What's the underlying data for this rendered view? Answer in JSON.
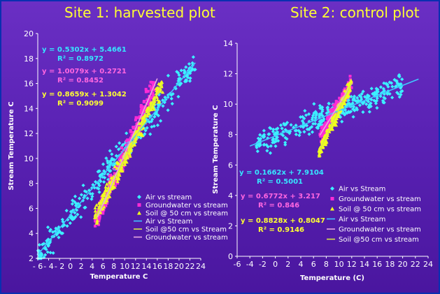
{
  "colors": {
    "air": "#3cf0ff",
    "groundwater": "#ff2bd6",
    "soil": "#f0ff1e",
    "fit_air": "#40c8ff",
    "fit_soil": "#d8e845",
    "fit_gw": "#e8a8e0",
    "eq_air": "#36e6ff",
    "eq_gw": "#ff66e0",
    "eq_soil": "#ffff33",
    "title": "#ffff33"
  },
  "chart_data": [
    {
      "type": "scatter",
      "title": "Site 1: harvested plot",
      "xlabel": "Temperature C",
      "ylabel": "Stream Temperature C",
      "xlim": [
        -6,
        24
      ],
      "ylim": [
        2,
        20
      ],
      "xticks": [
        -6,
        -4,
        -2,
        0,
        2,
        4,
        6,
        8,
        10,
        12,
        14,
        16,
        18,
        20,
        22,
        24
      ],
      "xtick_labels": [
        "- 6",
        "- 4",
        "- 2",
        "0",
        "2",
        "4",
        "6",
        "8",
        "10",
        "12",
        "14",
        "16",
        "18",
        "20",
        "22",
        "24"
      ],
      "yticks": [
        2,
        4,
        6,
        8,
        10,
        12,
        14,
        16,
        18,
        20
      ],
      "ytick_labels": [
        "2",
        "4",
        "6",
        "8",
        "10",
        "12",
        "14",
        "16",
        "18",
        "20"
      ],
      "series": [
        {
          "name": "Air vs stream",
          "kind": "points",
          "color_key": "air",
          "marker": "diamond",
          "fit": [
            0.5302,
            5.4661
          ],
          "x_range": [
            -6,
            23
          ],
          "noise": 1.3,
          "count": 320
        },
        {
          "name": "Groundwater vs stream",
          "kind": "points",
          "color_key": "groundwater",
          "marker": "square",
          "fit": [
            1.0079,
            0.2721
          ],
          "x_range": [
            4.5,
            15.5
          ],
          "noise": 1.1,
          "count": 260
        },
        {
          "name": "Soil @ 50 cm vs stream",
          "kind": "points",
          "color_key": "soil",
          "marker": "triangle",
          "fit": [
            0.8659,
            1.3042
          ],
          "x_range": [
            4.5,
            17
          ],
          "noise": 0.9,
          "count": 300
        },
        {
          "name": "Air vs Stream",
          "kind": "line",
          "color_key": "fit_air",
          "fit": [
            0.5302,
            5.4661
          ],
          "x_range": [
            -6,
            23
          ]
        },
        {
          "name": "Soil @50 cm vs Stream",
          "kind": "line",
          "color_key": "fit_soil",
          "fit": [
            0.8659,
            1.3042
          ],
          "x_range": [
            4.5,
            17
          ]
        },
        {
          "name": "Groundwater vs stream",
          "kind": "line",
          "color_key": "fit_gw",
          "fit": [
            1.0079,
            0.2721
          ],
          "x_range": [
            5,
            16
          ]
        }
      ],
      "equations": [
        {
          "color_key": "eq_air",
          "eq": "y = 0.5302x + 5.4661",
          "r2": "R² = 0.8972"
        },
        {
          "color_key": "eq_gw",
          "eq": "y = 1.0079x + 0.2721",
          "r2": "R² = 0.8452"
        },
        {
          "color_key": "eq_soil",
          "eq": "y = 0.8659x + 1.3042",
          "r2": "R² = 0.9099"
        }
      ]
    },
    {
      "type": "scatter",
      "title": "Site 2: control plot",
      "xlabel": "Temperature (C)",
      "ylabel": "Stream Temperature C",
      "xlim": [
        -6,
        24
      ],
      "ylim": [
        0,
        14
      ],
      "xticks": [
        -6,
        -4,
        -2,
        0,
        2,
        4,
        6,
        8,
        10,
        12,
        14,
        16,
        18,
        20,
        22,
        24
      ],
      "xtick_labels": [
        "-6",
        "-4",
        "-2",
        "0",
        "2",
        "4",
        "6",
        "8",
        "10",
        "12",
        "14",
        "16",
        "18",
        "20",
        "22",
        "24"
      ],
      "yticks": [
        0,
        2,
        4,
        6,
        8,
        10,
        12,
        14
      ],
      "ytick_labels": [
        "0",
        "2",
        "4",
        "6",
        "8",
        "10",
        "12",
        "14"
      ],
      "series": [
        {
          "name": "Air vs Stream",
          "kind": "points",
          "color_key": "air",
          "marker": "diamond",
          "fit": [
            0.1662,
            7.9104
          ],
          "x_range": [
            -3,
            20
          ],
          "noise": 0.9,
          "count": 320
        },
        {
          "name": "Groundwater vs stream",
          "kind": "points",
          "color_key": "groundwater",
          "marker": "square",
          "fit": [
            0.6772,
            3.217
          ],
          "x_range": [
            7,
            12
          ],
          "noise": 0.6,
          "count": 180
        },
        {
          "name": "Soil @ 50 cm vs stream",
          "kind": "points",
          "color_key": "soil",
          "marker": "triangle",
          "fit": [
            0.8828,
            0.8047
          ],
          "x_range": [
            6.8,
            12
          ],
          "noise": 0.5,
          "count": 220
        },
        {
          "name": "Air vs Stream",
          "kind": "line",
          "color_key": "fit_air",
          "fit": [
            0.1662,
            7.9104
          ],
          "x_range": [
            -4,
            22.5
          ]
        },
        {
          "name": "Groundwater vs stream",
          "kind": "line",
          "color_key": "fit_gw",
          "fit": [
            0.6772,
            3.217
          ],
          "x_range": [
            7,
            12
          ]
        },
        {
          "name": "Soil @50 cm vs stream",
          "kind": "line",
          "color_key": "fit_soil",
          "fit": [
            0.8828,
            0.8047
          ],
          "x_range": [
            7,
            12
          ]
        }
      ],
      "equations": [
        {
          "color_key": "eq_air",
          "eq": "y = 0.1662x + 7.9104",
          "r2": "R² = 0.5001"
        },
        {
          "color_key": "eq_gw",
          "eq": "y = 0.6772x + 3.217",
          "r2": "R² = 0.846"
        },
        {
          "color_key": "eq_soil",
          "eq": "y = 0.8828x + 0.8047",
          "r2": "R² = 0.9146"
        }
      ]
    }
  ]
}
